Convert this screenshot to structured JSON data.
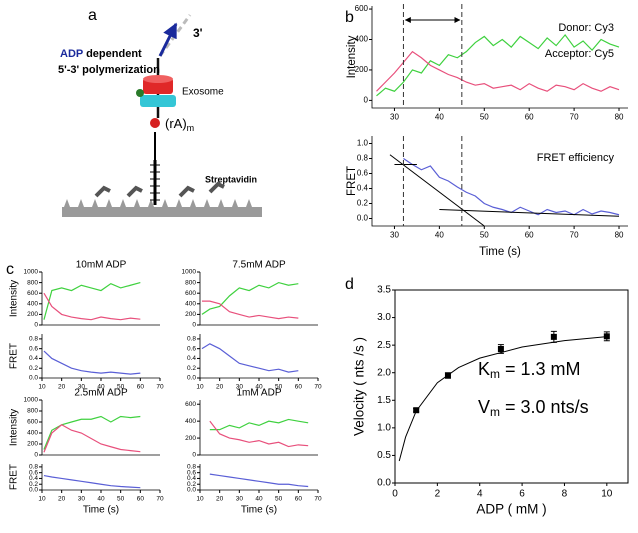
{
  "panel_labels": [
    "a",
    "b",
    "c",
    "d"
  ],
  "diagram": {
    "end_label": "3'",
    "direction_highlight": "ADP",
    "direction_rest": " dependent",
    "direction_line2": "5'-3' polymerization",
    "exosome": "Exosome",
    "strand_main": "(rA)",
    "strand_sub": "m",
    "surface": "Streptavidin"
  },
  "chart_data": [
    {
      "type": "line",
      "ylabel": "Intensity",
      "legend": "upper right",
      "x": [
        26,
        28,
        30,
        32,
        34,
        36,
        38,
        40,
        42,
        44,
        46,
        48,
        50,
        52,
        54,
        56,
        58,
        60,
        62,
        64,
        66,
        68,
        70,
        72,
        74,
        76,
        78,
        80
      ],
      "series": [
        {
          "name": "Donor:  Cy3",
          "color": "#3fd13f",
          "values": [
            30,
            80,
            60,
            120,
            200,
            180,
            260,
            230,
            300,
            280,
            320,
            380,
            420,
            360,
            400,
            350,
            420,
            380,
            340,
            410,
            360,
            430,
            350,
            390,
            330,
            400,
            370,
            350
          ]
        },
        {
          "name": "Acceptor: Cy5",
          "color": "#e8507c",
          "values": [
            60,
            120,
            180,
            250,
            320,
            280,
            230,
            200,
            170,
            150,
            120,
            100,
            110,
            80,
            90,
            100,
            70,
            110,
            80,
            60,
            100,
            90,
            70,
            110,
            80,
            60,
            90,
            70
          ]
        }
      ],
      "xlim": [
        25,
        82
      ],
      "ylim": [
        -50,
        620
      ],
      "xticks": [
        30,
        40,
        50,
        60,
        70,
        80
      ],
      "yticks": [
        0,
        200,
        400,
        600
      ],
      "markers": [
        32,
        45
      ]
    },
    {
      "type": "line",
      "ylabel": "FRET",
      "xlabel": "Time (s)",
      "legend": "upper right",
      "x": [
        32,
        34,
        36,
        38,
        40,
        42,
        44,
        46,
        48,
        50,
        52,
        54,
        56,
        58,
        60,
        62,
        64,
        66,
        68,
        70,
        72,
        74,
        76,
        78,
        80
      ],
      "series": [
        {
          "name": "FRET efficiency",
          "color": "#5a5fd6",
          "values": [
            0.8,
            0.72,
            0.65,
            0.7,
            0.55,
            0.5,
            0.42,
            0.35,
            0.3,
            0.2,
            0.15,
            0.12,
            0.08,
            0.15,
            0.1,
            0.05,
            0.12,
            0.08,
            0.1,
            0.05,
            0.12,
            0.06,
            0.1,
            0.08,
            0.05
          ]
        }
      ],
      "fit_lines": [
        {
          "x": [
            30,
            35
          ],
          "y": [
            0.72,
            0.72
          ]
        },
        {
          "x": [
            29,
            50
          ],
          "y": [
            0.85,
            -0.1
          ]
        },
        {
          "x": [
            40,
            80
          ],
          "y": [
            0.12,
            0.03
          ]
        }
      ],
      "xlim": [
        25,
        82
      ],
      "ylim": [
        -0.1,
        1.1
      ],
      "xticks": [
        30,
        40,
        50,
        60,
        70,
        80
      ],
      "yticks": [
        {
          "value": 0,
          "label": "0.0"
        },
        {
          "value": 0.2,
          "label": "0.2"
        },
        {
          "value": 0.4,
          "label": "0.4"
        },
        {
          "value": 0.6,
          "label": "0.6"
        },
        {
          "value": 0.8,
          "label": "0.8"
        },
        {
          "value": 1,
          "label": "1.0"
        }
      ],
      "markers": [
        32,
        45
      ]
    },
    {
      "type": "line",
      "title": "10mM ADP",
      "ylabel": "Intensity",
      "x": [
        11,
        15,
        20,
        25,
        30,
        35,
        40,
        45,
        50,
        55,
        60
      ],
      "series": [
        {
          "color": "#3fd13f",
          "values": [
            100,
            650,
            700,
            650,
            750,
            700,
            650,
            780,
            700,
            750,
            800
          ]
        },
        {
          "color": "#e8507c",
          "values": [
            600,
            350,
            200,
            150,
            120,
            100,
            150,
            120,
            100,
            130,
            110
          ]
        }
      ],
      "xlim": [
        10,
        70
      ],
      "ylim": [
        0,
        1000
      ],
      "yticks": [
        0,
        200,
        400,
        600,
        800,
        1000
      ]
    },
    {
      "type": "line",
      "ylabel": "FRET",
      "x": [
        11,
        15,
        20,
        25,
        30,
        35,
        40,
        45,
        50,
        55,
        60
      ],
      "series": [
        {
          "color": "#5a5fd6",
          "values": [
            0.55,
            0.4,
            0.3,
            0.2,
            0.15,
            0.12,
            0.1,
            0.12,
            0.1,
            0.08,
            0.1
          ]
        }
      ],
      "xlim": [
        10,
        70
      ],
      "ylim": [
        0,
        0.9
      ],
      "xticks": [
        10,
        20,
        30,
        40,
        50,
        60,
        70
      ],
      "yticks": [
        {
          "value": 0,
          "label": "0.0"
        },
        {
          "value": 0.2,
          "label": "0.2"
        },
        {
          "value": 0.4,
          "label": "0.4"
        },
        {
          "value": 0.6,
          "label": "0.6"
        },
        {
          "value": 0.8,
          "label": "0.8"
        }
      ]
    },
    {
      "type": "line",
      "title": "7.5mM ADP",
      "x": [
        11,
        15,
        20,
        25,
        30,
        35,
        40,
        45,
        50,
        55,
        60
      ],
      "series": [
        {
          "color": "#3fd13f",
          "values": [
            200,
            300,
            350,
            550,
            700,
            650,
            750,
            700,
            800,
            750,
            780
          ]
        },
        {
          "color": "#e8507c",
          "values": [
            450,
            450,
            400,
            250,
            200,
            150,
            180,
            150,
            120,
            150,
            130
          ]
        }
      ],
      "xlim": [
        10,
        70
      ],
      "ylim": [
        0,
        1000
      ],
      "yticks": [
        0,
        200,
        400,
        600,
        800,
        1000
      ]
    },
    {
      "type": "line",
      "x": [
        11,
        15,
        20,
        25,
        30,
        35,
        40,
        45,
        50,
        55,
        60
      ],
      "series": [
        {
          "color": "#5a5fd6",
          "values": [
            0.6,
            0.7,
            0.6,
            0.45,
            0.3,
            0.25,
            0.2,
            0.15,
            0.18,
            0.12,
            0.15
          ]
        }
      ],
      "xlim": [
        10,
        70
      ],
      "ylim": [
        0,
        0.9
      ],
      "xticks": [
        10,
        20,
        30,
        40,
        50,
        60,
        70
      ],
      "yticks": [
        {
          "value": 0,
          "label": "0.0"
        },
        {
          "value": 0.2,
          "label": "0.2"
        },
        {
          "value": 0.4,
          "label": "0.4"
        },
        {
          "value": 0.6,
          "label": "0.6"
        },
        {
          "value": 0.8,
          "label": "0.8"
        }
      ]
    },
    {
      "type": "line",
      "title": "2.5mM ADP",
      "ylabel": "Intensity",
      "x": [
        11,
        15,
        20,
        25,
        30,
        35,
        40,
        45,
        50,
        55,
        60
      ],
      "series": [
        {
          "color": "#3fd13f",
          "values": [
            100,
            450,
            550,
            600,
            650,
            650,
            700,
            600,
            700,
            680,
            700
          ]
        },
        {
          "color": "#e8507c",
          "values": [
            50,
            400,
            550,
            450,
            400,
            300,
            200,
            150,
            100,
            80,
            60
          ]
        }
      ],
      "xlim": [
        10,
        70
      ],
      "ylim": [
        0,
        1000
      ],
      "yticks": [
        0,
        200,
        400,
        600,
        800,
        1000
      ]
    },
    {
      "type": "line",
      "ylabel": "FRET",
      "xlabel": "Time (s)",
      "x": [
        11,
        15,
        20,
        25,
        30,
        35,
        40,
        45,
        50,
        55,
        60
      ],
      "series": [
        {
          "color": "#5a5fd6",
          "values": [
            0.5,
            0.45,
            0.4,
            0.35,
            0.3,
            0.25,
            0.2,
            0.15,
            0.12,
            0.1,
            0.08
          ]
        }
      ],
      "xlim": [
        10,
        70
      ],
      "ylim": [
        0,
        0.9
      ],
      "xticks": [
        10,
        20,
        30,
        40,
        50,
        60,
        70
      ],
      "yticks": [
        {
          "value": 0,
          "label": "0.0"
        },
        {
          "value": 0.2,
          "label": "0.2"
        },
        {
          "value": 0.4,
          "label": "0.4"
        },
        {
          "value": 0.6,
          "label": "0.6"
        },
        {
          "value": 0.8,
          "label": "0.8"
        }
      ]
    },
    {
      "type": "line",
      "title": "1mM ADP",
      "x": [
        15,
        20,
        25,
        30,
        35,
        40,
        45,
        50,
        55,
        60,
        65
      ],
      "series": [
        {
          "color": "#3fd13f",
          "values": [
            300,
            300,
            350,
            320,
            380,
            350,
            400,
            380,
            420,
            400,
            380
          ]
        },
        {
          "color": "#e8507c",
          "values": [
            400,
            250,
            200,
            180,
            150,
            170,
            130,
            150,
            100,
            120,
            110
          ]
        }
      ],
      "xlim": [
        10,
        70
      ],
      "ylim": [
        0,
        650
      ],
      "yticks": [
        0,
        200,
        400,
        600
      ]
    },
    {
      "type": "line",
      "xlabel": "Time (s)",
      "x": [
        15,
        20,
        25,
        30,
        35,
        40,
        45,
        50,
        55,
        60,
        65
      ],
      "series": [
        {
          "color": "#5a5fd6",
          "values": [
            0.55,
            0.5,
            0.45,
            0.4,
            0.35,
            0.3,
            0.25,
            0.2,
            0.2,
            0.15,
            0.12
          ]
        }
      ],
      "xlim": [
        10,
        70
      ],
      "ylim": [
        0,
        0.9
      ],
      "xticks": [
        10,
        20,
        30,
        40,
        50,
        60,
        70
      ],
      "yticks": [
        {
          "value": 0,
          "label": "0.0"
        },
        {
          "value": 0.2,
          "label": "0.2"
        },
        {
          "value": 0.4,
          "label": "0.4"
        },
        {
          "value": 0.6,
          "label": "0.6"
        },
        {
          "value": 0.8,
          "label": "0.8"
        }
      ]
    },
    {
      "type": "scatter",
      "xlabel": "ADP ( mM )",
      "ylabel": "Velocity ( nts /s )",
      "x": [
        1,
        2.5,
        5,
        7.5,
        10
      ],
      "values": [
        1.32,
        1.95,
        2.43,
        2.65,
        2.66
      ],
      "errors": [
        0.03,
        0.05,
        0.08,
        0.1,
        0.08
      ],
      "color": "#000000",
      "fit": {
        "x": [
          0.2,
          0.5,
          1,
          2,
          3,
          4,
          6,
          8,
          10
        ],
        "y": [
          0.4,
          0.833,
          1.304,
          1.818,
          2.093,
          2.264,
          2.466,
          2.581,
          2.655
        ]
      },
      "annotations": [
        {
          "main": "K",
          "sub": "m",
          "rest": " = 1.3 mM"
        },
        {
          "main": "V",
          "sub": "m",
          "rest": " = 3.0 nts/s"
        }
      ],
      "xlim": [
        0,
        11
      ],
      "ylim": [
        0,
        3.5
      ],
      "xticks": [
        0,
        2,
        4,
        6,
        8,
        10
      ],
      "yticks": [
        {
          "value": 0,
          "label": "0.0"
        },
        {
          "value": 0.5,
          "label": "0.5"
        },
        {
          "value": 1,
          "label": "1.0"
        },
        {
          "value": 1.5,
          "label": "1.5"
        },
        {
          "value": 2,
          "label": "2.0"
        },
        {
          "value": 2.5,
          "label": "2.5"
        },
        {
          "value": 3,
          "label": "3.0"
        },
        {
          "value": 3.5,
          "label": "3.5"
        }
      ]
    }
  ]
}
